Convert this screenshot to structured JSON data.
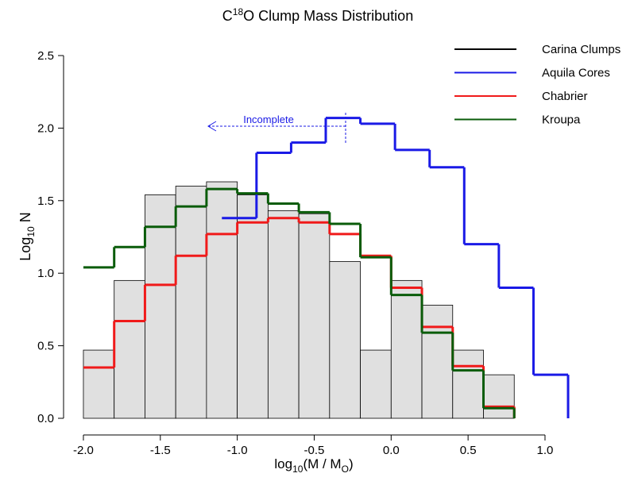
{
  "chart_data": {
    "type": "histogram",
    "title": {
      "base": "C",
      "sup": "18",
      "rest": "O Clump Mass Distribution"
    },
    "x_label": {
      "base": "log",
      "sub": "10",
      "mid": "(M / M",
      "sub2": "O",
      "end": ")"
    },
    "y_label": {
      "base": "Log",
      "sub": "10",
      "rest": " N"
    },
    "annotation": "Incomplete",
    "xlim": [
      -2.1,
      1.2
    ],
    "ylim": [
      0,
      2.5
    ],
    "xticks": [
      {
        "value": -2.0,
        "label": "-2.0"
      },
      -1.5,
      {
        "value": -1.0,
        "label": "-1.0"
      },
      -0.5,
      {
        "value": 0.0,
        "label": "0.0"
      },
      0.5,
      {
        "value": 1.0,
        "label": "1.0"
      }
    ],
    "yticks": [
      {
        "value": 0.0,
        "label": "0.0"
      },
      0.5,
      {
        "value": 1.0,
        "label": "1.0"
      },
      1.5,
      {
        "value": 2.0,
        "label": "2.0"
      },
      2.5
    ],
    "legend": "top-right",
    "histogram": {
      "name": "Carina Clumps",
      "color": "#000000",
      "fill": "#e0e0e0",
      "bins": [
        -2.0,
        -1.8,
        -1.6,
        -1.4,
        -1.2,
        -1.0,
        -0.8,
        -0.6,
        -0.4,
        -0.2,
        0.0,
        0.2,
        0.4,
        0.6,
        0.8
      ],
      "values": [
        0.47,
        0.95,
        1.54,
        1.6,
        1.63,
        1.54,
        1.43,
        1.41,
        1.08,
        0.47,
        0.95,
        0.78,
        0.47,
        0.3
      ]
    },
    "series": [
      {
        "name": "Aquila Cores",
        "color": "#1a1ae6",
        "bins": [
          -1.1,
          -0.875,
          -0.65,
          -0.425,
          -0.2,
          0.025,
          0.25,
          0.475,
          0.7,
          0.925,
          1.15
        ],
        "values": [
          1.38,
          1.83,
          1.9,
          2.07,
          2.03,
          1.85,
          1.73,
          1.2,
          0.9,
          0.3
        ]
      },
      {
        "name": "Chabrier",
        "color": "#f01a1a",
        "bins": [
          -2.0,
          -1.8,
          -1.6,
          -1.4,
          -1.2,
          -1.0,
          -0.8,
          -0.6,
          -0.4,
          -0.2,
          0.0,
          0.2,
          0.4,
          0.6,
          0.8
        ],
        "values": [
          0.35,
          0.67,
          0.92,
          1.12,
          1.27,
          1.35,
          1.38,
          1.35,
          1.27,
          1.12,
          0.9,
          0.63,
          0.36,
          0.08
        ]
      },
      {
        "name": "Kroupa",
        "color": "#0a5c0a",
        "bins": [
          -2.0,
          -1.8,
          -1.6,
          -1.4,
          -1.2,
          -1.0,
          -0.8,
          -0.6,
          -0.4,
          -0.2,
          0.0,
          0.2,
          0.4,
          0.6,
          0.8
        ],
        "values": [
          1.04,
          1.18,
          1.32,
          1.46,
          1.58,
          1.55,
          1.48,
          1.42,
          1.34,
          1.11,
          0.85,
          0.59,
          0.33,
          0.07
        ]
      }
    ]
  }
}
